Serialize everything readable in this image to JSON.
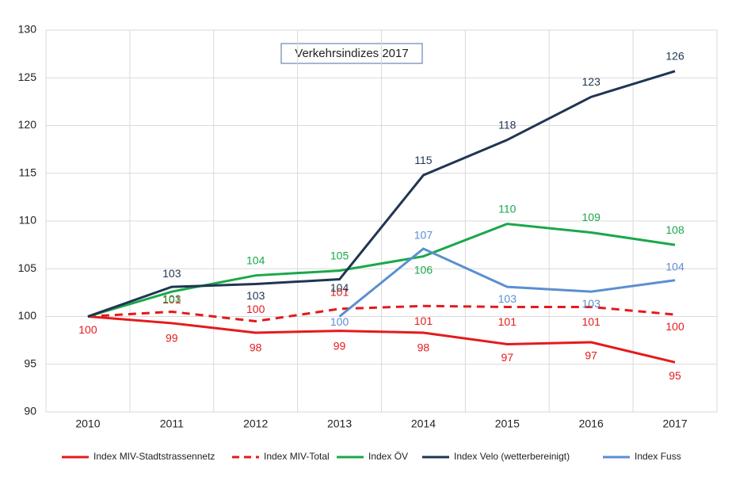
{
  "chart_data": {
    "type": "line",
    "title": "Verkehrsindizes 2017",
    "categories": [
      "2010",
      "2011",
      "2012",
      "2013",
      "2014",
      "2015",
      "2016",
      "2017"
    ],
    "series": [
      {
        "name": "Index MIV-Stadtstrassennetz",
        "color": "#e41a1c",
        "dash": false,
        "values": [
          100,
          99.3,
          98.3,
          98.5,
          98.3,
          97.1,
          97.3,
          95.2
        ],
        "value_labels": [
          "100",
          "99",
          "98",
          "99",
          "98",
          "97",
          "97",
          "95"
        ]
      },
      {
        "name": "Index MIV-Total",
        "color": "#e41a1c",
        "dash": true,
        "values": [
          100,
          100.5,
          99.5,
          100.8,
          101.1,
          101.0,
          101.0,
          100.2
        ],
        "value_labels": [
          null,
          "101",
          "100",
          "101",
          "101",
          "101",
          "101",
          "100"
        ]
      },
      {
        "name": "Index ÖV",
        "color": "#1aa84a",
        "dash": false,
        "values": [
          100,
          102.6,
          104.3,
          104.8,
          106.3,
          109.7,
          108.8,
          107.5
        ],
        "value_labels": [
          null,
          "103",
          "104",
          "105",
          "106",
          "110",
          "109",
          "108"
        ]
      },
      {
        "name": "Index Velo (wetterbereinigt)",
        "color": "#1f3552",
        "dash": false,
        "values": [
          100,
          103.1,
          103.4,
          103.9,
          114.8,
          118.5,
          123.0,
          125.7
        ],
        "value_labels": [
          null,
          "103",
          "103",
          "104",
          "115",
          "118",
          "123",
          "126"
        ]
      },
      {
        "name": "Index Fuss",
        "color": "#5b8fd0",
        "dash": false,
        "values": [
          null,
          null,
          null,
          100.0,
          107.1,
          103.1,
          102.6,
          103.8
        ],
        "value_labels": [
          null,
          null,
          null,
          "100",
          "107",
          "103",
          "103",
          "104"
        ]
      }
    ],
    "ylim": [
      90,
      130
    ],
    "yticks": [
      90,
      95,
      100,
      105,
      110,
      115,
      120,
      125,
      130
    ],
    "grid": true
  }
}
